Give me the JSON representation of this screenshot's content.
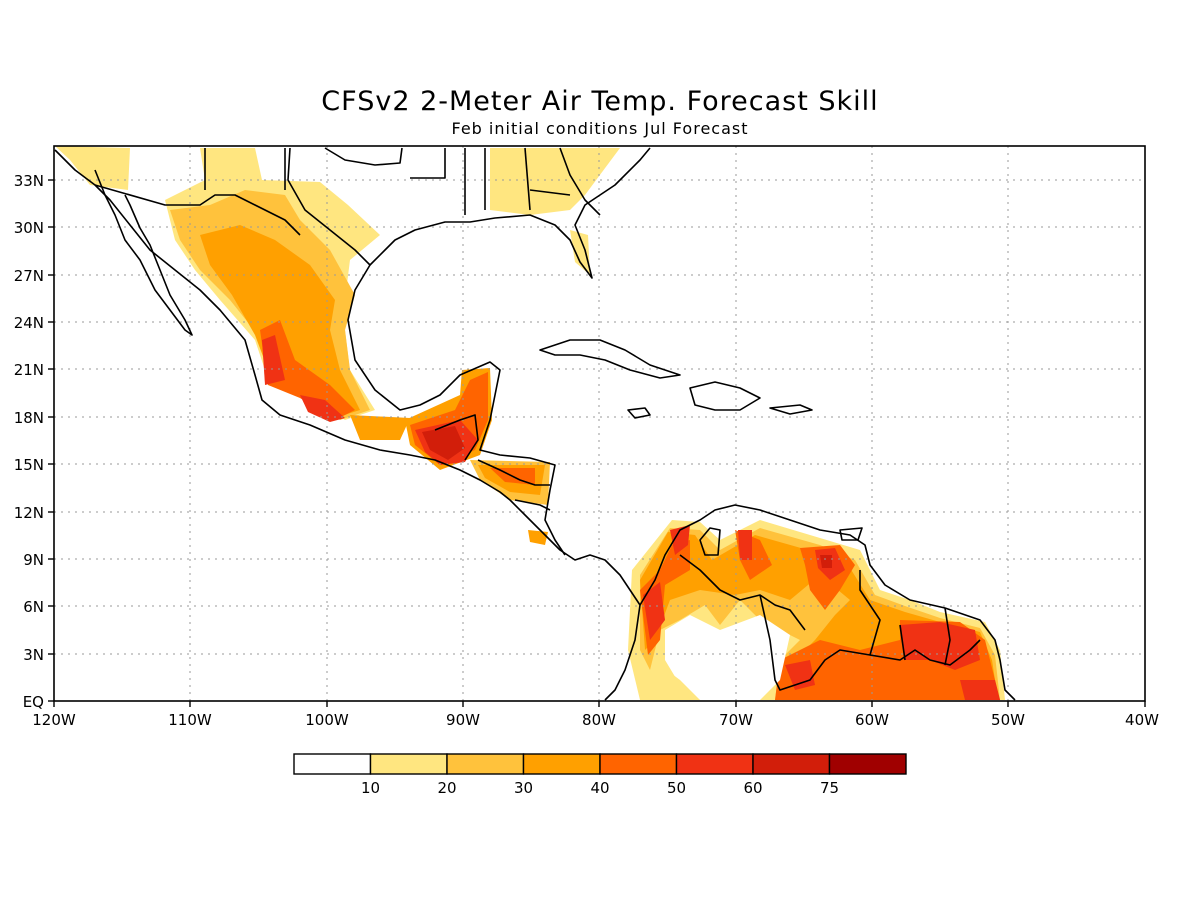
{
  "title": "CFSv2 2-Meter Air Temp. Forecast Skill",
  "subtitle": "Feb initial conditions  Jul Forecast",
  "map": {
    "lon_ticks": [
      "120W",
      "110W",
      "100W",
      "90W",
      "80W",
      "70W",
      "60W",
      "50W",
      "40W"
    ],
    "lat_ticks": [
      "EQ",
      "3N",
      "6N",
      "9N",
      "12N",
      "15N",
      "18N",
      "21N",
      "24N",
      "27N",
      "30N",
      "33N"
    ],
    "grid": true
  },
  "legend": {
    "labels": [
      "10",
      "20",
      "30",
      "40",
      "50",
      "60",
      "75"
    ],
    "colors": [
      "#ffffff",
      "#ffe680",
      "#ffc23c",
      "#ffa000",
      "#ff6400",
      "#f03214",
      "#d21e0a",
      "#a00000"
    ]
  }
}
